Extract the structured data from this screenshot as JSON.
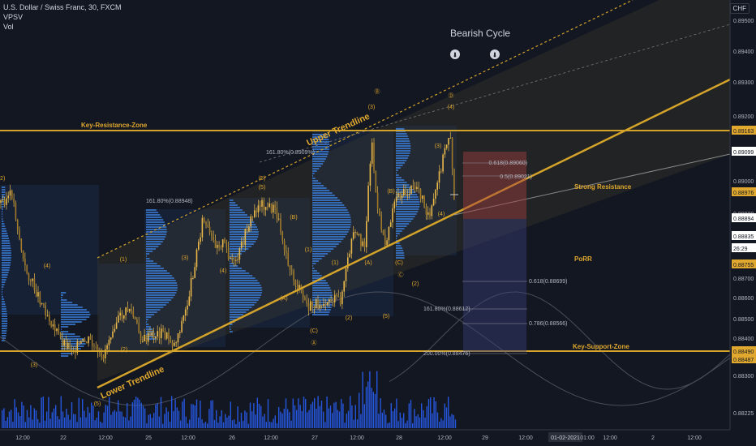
{
  "header": {
    "symbol_line": "U.S. Dollar / Swiss Franc, 30, FXCM",
    "indicator1": "VPSV",
    "indicator2": "Vol",
    "currency": "CHF"
  },
  "annotations": {
    "bearish_cycle": "Bearish Cycle",
    "key_resistance": "Key-Resistance-Zone",
    "key_support": "Key-Support-Zone",
    "upper_trendline": "Upper Trendline",
    "lower_trendline": "Lower Trendline",
    "strong_resistance": "Strong Resistance",
    "prz": "PoRR"
  },
  "colors": {
    "background": "#131722",
    "up_candle": "#e8b84a",
    "down_candle": "#e8b84a",
    "trendline": "#d4a32a",
    "volume": "#2962ff",
    "profile": "#3a7bd5",
    "axis_text": "#b2b5be",
    "label_gold": "#e0a82e"
  },
  "chart_data": {
    "type": "candlestick",
    "price_axis_ticks": [
      "0.89500",
      "0.89400",
      "0.89300",
      "0.89200",
      "0.89100",
      "0.89000",
      "0.88900",
      "0.88800",
      "0.88700",
      "0.88600",
      "0.88500",
      "0.88400",
      "0.88300",
      "0.88225"
    ],
    "price_labels": [
      {
        "text": "0.89163",
        "kind": "gold"
      },
      {
        "text": "0.89099",
        "kind": "white"
      },
      {
        "text": "0.88976",
        "kind": "gold"
      },
      {
        "text": "0.88894",
        "kind": "white"
      },
      {
        "text": "0.88835",
        "kind": "white"
      },
      {
        "text": "26:29",
        "kind": "white"
      },
      {
        "text": "0.88755",
        "kind": "gold"
      },
      {
        "text": "0.88490",
        "kind": "gold"
      },
      {
        "text": "0.88487",
        "kind": "gold"
      }
    ],
    "time_axis_ticks": [
      "12:00",
      "22",
      "12:00",
      "25",
      "12:00",
      "26",
      "12:00",
      "27",
      "12:00",
      "28",
      "12:00",
      "29",
      "12:00",
      "01-02-2021",
      "01:00",
      "12:00",
      "2",
      "12:00"
    ],
    "fib_labels": [
      "161.80%(0.88948)",
      "161.80%(0.8909%)",
      "0.618(0.89060)",
      "0.5(0.89021)",
      "0.618(0.88699)",
      "161.80%(0.88612)",
      "0.786(0.88566)",
      "200.00%(0.88476)"
    ],
    "wave_labels": [
      "(2)",
      "(4)",
      "(3)",
      "(5)",
      "(1)",
      "(2)",
      "(3)",
      "(4)",
      "(5)",
      "(A)",
      "(B)",
      "(C)",
      "(1)",
      "(2)",
      "(3)",
      "(4)",
      "(5)",
      "(A)",
      "(B)",
      "(C)",
      "(1)",
      "(2)",
      "(3)",
      "(4)",
      "(5)",
      "Ⓐ",
      "Ⓑ",
      "Ⓒ",
      "Ⓓ",
      "Ⓔ"
    ],
    "ylim": [
      0.88225,
      0.8955
    ],
    "key_resistance": 0.89163,
    "key_support": 0.8849
  }
}
